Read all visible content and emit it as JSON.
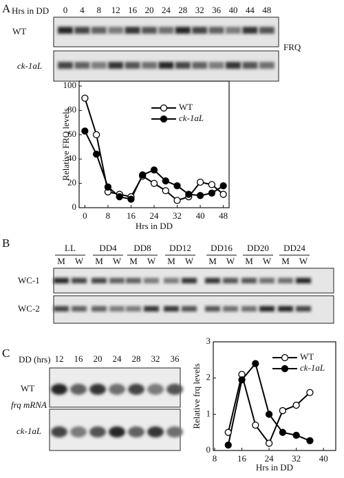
{
  "panels": {
    "a": {
      "letter": "A",
      "x_label": "Hrs in DD",
      "lanes": [
        "0",
        "4",
        "8",
        "12",
        "16",
        "20",
        "24",
        "28",
        "32",
        "36",
        "40",
        "44",
        "48"
      ],
      "rows": [
        "WT",
        "ck-1aL"
      ],
      "protein": "FRQ"
    },
    "b": {
      "letter": "B",
      "groups": [
        "LL",
        "DD4",
        "DD8",
        "DD12",
        "DD16",
        "DD20",
        "DD24"
      ],
      "lane_types": [
        "M",
        "W"
      ],
      "rows": [
        "WC-1",
        "WC-2"
      ]
    },
    "c": {
      "letter": "C",
      "x_label": "DD (hrs)",
      "lanes": [
        "12",
        "16",
        "20",
        "24",
        "28",
        "32",
        "36"
      ],
      "rows": [
        "WT",
        "ck-1aL"
      ],
      "row_note": "frq mRNA"
    }
  },
  "chart_data": [
    {
      "type": "line",
      "y_label": "Relative FRQ levels",
      "x_label": "Hrs in DD",
      "x": [
        0,
        4,
        8,
        12,
        16,
        20,
        24,
        28,
        32,
        36,
        40,
        44,
        48
      ],
      "series": [
        {
          "name": "WT",
          "color": "#ffffff",
          "values": [
            90,
            60,
            13,
            11,
            9,
            26,
            20,
            14,
            6,
            9,
            21,
            19,
            11
          ]
        },
        {
          "name": "ck-1aL",
          "color": "#000000",
          "values": [
            63,
            44,
            17,
            9,
            7,
            27,
            31,
            22,
            18,
            11,
            10,
            12,
            18
          ]
        }
      ],
      "xlim": [
        -2,
        50
      ],
      "xticks": [
        0,
        8,
        16,
        24,
        32,
        40,
        48
      ],
      "ylim": [
        0,
        104
      ],
      "yticks": [
        0,
        20,
        40,
        60,
        80,
        100
      ],
      "legend": "upper right"
    },
    {
      "type": "line",
      "y_label": "Relative frq levels",
      "x_label": "Hrs in DD",
      "x": [
        12,
        16,
        20,
        24,
        28,
        32,
        36
      ],
      "series": [
        {
          "name": "WT",
          "color": "#ffffff",
          "values": [
            0.5,
            2.1,
            0.7,
            0.2,
            1.1,
            1.25,
            1.6
          ]
        },
        {
          "name": "ck-1aL",
          "color": "#000000",
          "values": [
            0.15,
            1.95,
            2.4,
            1.0,
            0.5,
            0.42,
            0.27
          ]
        }
      ],
      "xlim": [
        7.6,
        43.6
      ],
      "xticks": [
        8,
        16,
        24,
        32,
        40
      ],
      "ylim": [
        0,
        3
      ],
      "yticks": [
        0,
        1,
        2,
        3
      ],
      "legend": "upper right"
    }
  ]
}
